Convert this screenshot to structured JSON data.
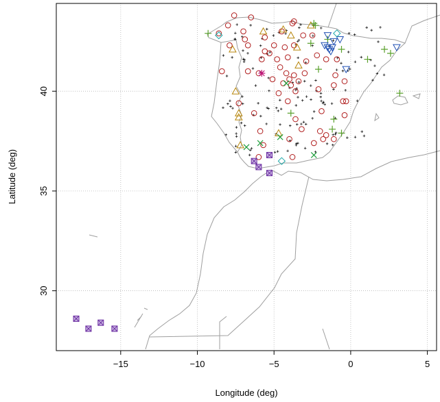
{
  "chart_data": {
    "type": "scatter",
    "title": "",
    "xlabel": "Longitude (deg)",
    "ylabel": "Latitude (deg)",
    "xlim": [
      -19.2,
      5.6
    ],
    "ylim": [
      27.0,
      44.4
    ],
    "xticks": [
      -15,
      -10,
      -5,
      0,
      5
    ],
    "yticks": [
      30,
      35,
      40
    ],
    "xtick_labels": [
      "−15",
      "−10",
      "−5",
      "0",
      "5"
    ],
    "ytick_labels": [
      "30",
      "35",
      "40"
    ],
    "grid": true,
    "colors": {
      "coast": "#9e9e9e",
      "small_stations": "#000000",
      "circles": "#b01d1d",
      "triangles": "#b7860b",
      "plus_markers": "#5aa02c",
      "x_markers": "#1e9e3c",
      "down_triangles": "#1f4fb3",
      "diamonds": "#1aa6a6",
      "boxed_x": "#6a2ca0",
      "star": "#c0187a"
    },
    "series": [
      {
        "marker": "circle",
        "color": "#b01d1d",
        "points": [
          [
            -7.6,
            43.8
          ],
          [
            -6.5,
            43.7
          ],
          [
            -8.0,
            43.3
          ],
          [
            -7.0,
            43.0
          ],
          [
            -5.6,
            42.7
          ],
          [
            -4.5,
            43.0
          ],
          [
            -3.8,
            43.4
          ],
          [
            -5.0,
            42.3
          ],
          [
            -4.3,
            42.2
          ],
          [
            -3.7,
            42.3
          ],
          [
            -3.1,
            42.8
          ],
          [
            -2.5,
            42.8
          ],
          [
            -6.7,
            42.3
          ],
          [
            -5.8,
            41.6
          ],
          [
            -5.3,
            41.9
          ],
          [
            -4.8,
            41.6
          ],
          [
            -4.1,
            41.7
          ],
          [
            -4.6,
            41.2
          ],
          [
            -4.2,
            40.9
          ],
          [
            -3.7,
            40.8
          ],
          [
            -3.9,
            40.3
          ],
          [
            -3.4,
            40.5
          ],
          [
            -3.6,
            40.0
          ],
          [
            -3.0,
            40.9
          ],
          [
            -2.2,
            41.8
          ],
          [
            -1.6,
            41.6
          ],
          [
            -0.9,
            41.6
          ],
          [
            -1.0,
            40.8
          ],
          [
            -1.1,
            40.3
          ],
          [
            -2.1,
            40.1
          ],
          [
            -0.4,
            40.5
          ],
          [
            -0.5,
            39.5
          ],
          [
            -0.4,
            38.8
          ],
          [
            -1.9,
            39.0
          ],
          [
            -2.0,
            38.0
          ],
          [
            -1.6,
            37.8
          ],
          [
            -1.8,
            37.6
          ],
          [
            -2.4,
            37.4
          ],
          [
            -1.1,
            37.6
          ],
          [
            -6.0,
            40.9
          ],
          [
            -6.7,
            41.0
          ],
          [
            -8.4,
            41.0
          ],
          [
            -7.3,
            39.4
          ],
          [
            -6.3,
            38.9
          ],
          [
            -5.7,
            37.3
          ],
          [
            -6.0,
            36.7
          ],
          [
            -3.8,
            36.7
          ],
          [
            -4.0,
            37.6
          ],
          [
            -3.2,
            38.1
          ],
          [
            -3.6,
            38.6
          ],
          [
            -5.9,
            38.0
          ],
          [
            -4.7,
            39.9
          ],
          [
            -5.1,
            40.6
          ],
          [
            -7.9,
            42.3
          ],
          [
            -8.6,
            42.9
          ],
          [
            -4.1,
            39.5
          ],
          [
            -2.9,
            41.5
          ],
          [
            -5.6,
            42.0
          ],
          [
            -6.9,
            42.6
          ],
          [
            -4.4,
            40.4
          ],
          [
            -3.7,
            43.5
          ],
          [
            -4.0,
            40.6
          ],
          [
            -0.3,
            39.5
          ]
        ]
      },
      {
        "marker": "triangle",
        "color": "#b7860b",
        "points": [
          [
            -7.7,
            42.1
          ],
          [
            -5.7,
            43.0
          ],
          [
            -3.9,
            42.8
          ],
          [
            -2.6,
            43.3
          ],
          [
            -3.4,
            41.3
          ],
          [
            -7.5,
            40.0
          ],
          [
            -7.3,
            38.9
          ],
          [
            -7.3,
            38.7
          ],
          [
            -4.7,
            37.9
          ],
          [
            -7.2,
            37.3
          ],
          [
            -3.5,
            42.2
          ],
          [
            -4.4,
            43.1
          ]
        ]
      },
      {
        "marker": "plus",
        "color": "#5aa02c",
        "points": [
          [
            -9.3,
            42.9
          ],
          [
            -2.3,
            43.3
          ],
          [
            -0.6,
            42.1
          ],
          [
            -2.1,
            41.1
          ],
          [
            1.1,
            41.6
          ],
          [
            2.2,
            42.1
          ],
          [
            2.6,
            41.9
          ],
          [
            3.2,
            39.9
          ],
          [
            -1.1,
            38.6
          ],
          [
            -0.6,
            37.9
          ],
          [
            -1.2,
            38.1
          ],
          [
            -3.9,
            38.9
          ],
          [
            -2.6,
            42.4
          ],
          [
            -1.5,
            42.6
          ],
          [
            -2.4,
            43.4
          ]
        ]
      },
      {
        "marker": "x",
        "color": "#1e9e3c",
        "points": [
          [
            -5.9,
            37.4
          ],
          [
            -6.8,
            37.2
          ],
          [
            -4.6,
            37.7
          ],
          [
            -2.4,
            36.8
          ],
          [
            -4.2,
            40.4
          ]
        ]
      },
      {
        "marker": "down-triangle",
        "color": "#1f4fb3",
        "points": [
          [
            -1.7,
            42.3
          ],
          [
            -1.5,
            42.2
          ],
          [
            -1.4,
            42.1
          ],
          [
            -1.3,
            42.0
          ],
          [
            -1.2,
            42.2
          ],
          [
            -1.1,
            42.5
          ],
          [
            -1.5,
            42.8
          ],
          [
            -0.7,
            42.6
          ],
          [
            -0.3,
            41.1
          ],
          [
            3.0,
            42.2
          ]
        ]
      },
      {
        "marker": "diamond",
        "color": "#1aa6a6",
        "points": [
          [
            -0.9,
            42.9
          ],
          [
            -4.5,
            36.5
          ],
          [
            -8.6,
            42.8
          ]
        ]
      },
      {
        "marker": "boxed-x",
        "color": "#6a2ca0",
        "points": [
          [
            -6.3,
            36.5
          ],
          [
            -6.0,
            36.2
          ],
          [
            -5.3,
            35.9
          ],
          [
            -5.3,
            36.8
          ],
          [
            -17.9,
            28.6
          ],
          [
            -17.1,
            28.1
          ],
          [
            -16.3,
            28.4
          ],
          [
            -15.4,
            28.1
          ]
        ]
      },
      {
        "marker": "star",
        "color": "#c0187a",
        "points": [
          [
            -5.8,
            40.9
          ]
        ]
      }
    ]
  }
}
